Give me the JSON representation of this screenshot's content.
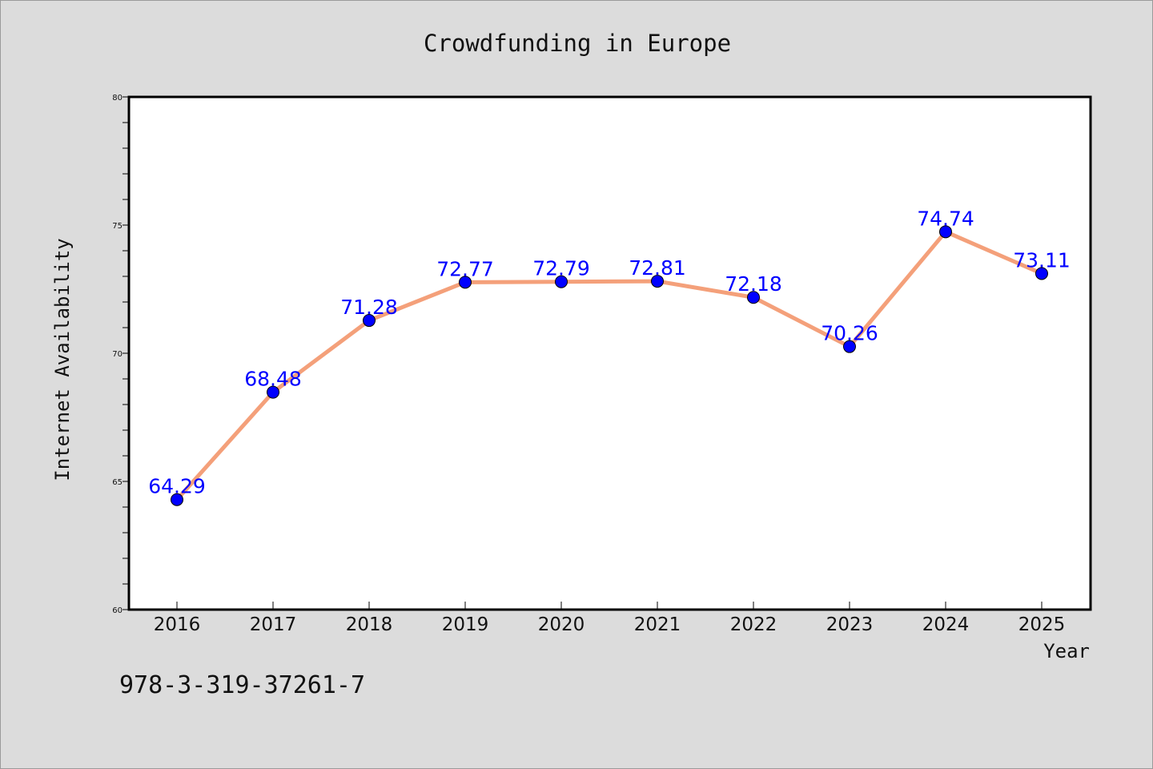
{
  "chart_data": {
    "type": "line",
    "title": "Crowdfunding in Europe",
    "xlabel": "Year",
    "ylabel": "Internet Availability",
    "categories": [
      "2016",
      "2017",
      "2018",
      "2019",
      "2020",
      "2021",
      "2022",
      "2023",
      "2024",
      "2025"
    ],
    "series": [
      {
        "values": [
          64.29,
          68.48,
          71.28,
          72.77,
          72.79,
          72.81,
          72.18,
          70.26,
          74.74,
          73.11
        ],
        "line_color": "#f4a07a",
        "marker_color": "#0000ff"
      }
    ],
    "data_labels": [
      "64.29",
      "68.48",
      "71.28",
      "72.77",
      "72.79",
      "72.81",
      "72.18",
      "70.26",
      "74.74",
      "73.11"
    ],
    "data_label_color": "#0000ff",
    "ylim": [
      60,
      80
    ],
    "yticks": [
      "60",
      "65",
      "70",
      "75",
      "80"
    ],
    "grid": false,
    "legend": "none"
  },
  "footnote": "978-3-319-37261-7",
  "colors": {
    "background": "#dcdcdc",
    "plot_background": "#ffffff",
    "line": "#f4a07a",
    "marker": "#0000ff",
    "data_label": "#0000ff"
  }
}
